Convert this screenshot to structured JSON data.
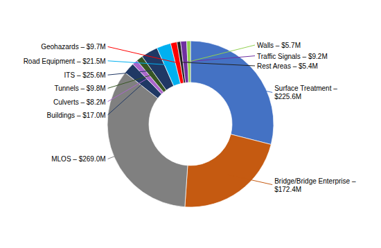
{
  "chart_data": {
    "type": "donut",
    "categories": [
      "Surface Treatment –\n$225.6M",
      "Bridge/Bridge Enterprise –\n$172.4M",
      "MLOS – $269.0M",
      "Buildings – $17.0M",
      "Culverts – $8.2M",
      "Tunnels – $9.8M",
      "ITS – $25.6M",
      "Road Equipment – $21.5M",
      "Geohazards – $9.7M",
      "Rest Areas – $5.4M",
      "Traffic Signals – $9.2M",
      "Walls – $5.7M"
    ],
    "values": [
      225.6,
      172.4,
      269.0,
      17.0,
      8.2,
      9.8,
      25.6,
      21.5,
      9.7,
      5.4,
      9.2,
      5.7
    ],
    "colors": [
      "#4472C4",
      "#C55A11",
      "#808080",
      "#1F3864",
      "#AA66CC",
      "#375623",
      "#203864",
      "#00B0F0",
      "#FF0000",
      "#222222",
      "#7030A0",
      "#92D050"
    ]
  }
}
